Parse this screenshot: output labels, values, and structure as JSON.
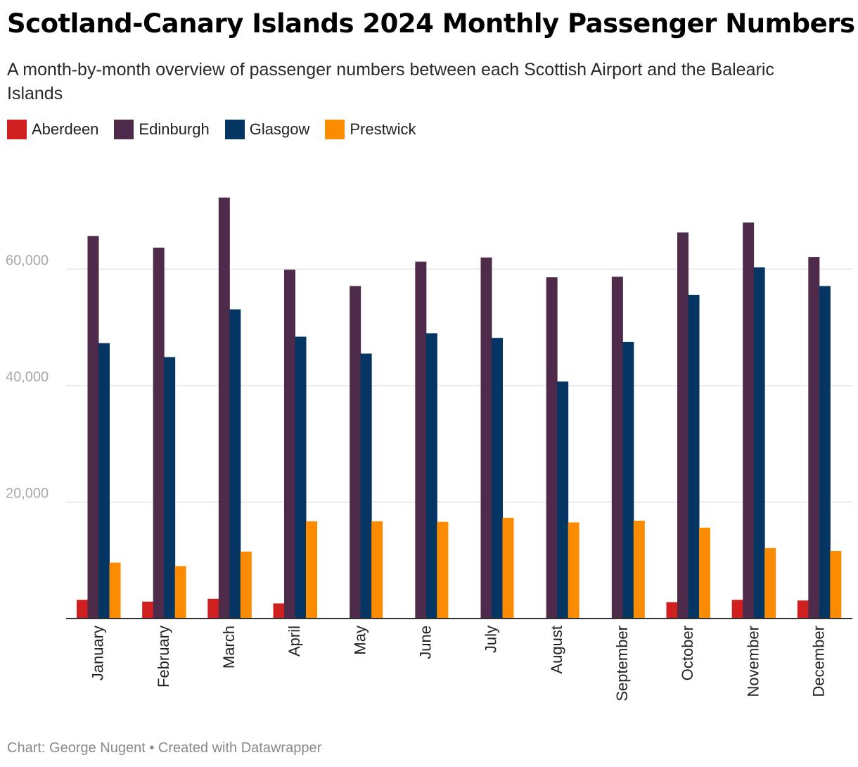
{
  "header": {
    "title": "Scotland-Canary Islands 2024 Monthly Passenger Numbers",
    "subtitle": "A month-by-month overview of passenger numbers between each Scottish Airport and the Balearic Islands"
  },
  "footer": {
    "credit": "Chart: George Nugent • Created with Datawrapper"
  },
  "colors": {
    "Aberdeen": "#d01f1f",
    "Edinburgh": "#4e2a4b",
    "Glasgow": "#043563",
    "Prestwick": "#fb8b00",
    "grid": "#e2e2e2",
    "axis": "#333333",
    "tick_text": "#a8a8a8"
  },
  "chart_data": {
    "type": "bar",
    "title": "Scotland-Canary Islands 2024 Monthly Passenger Numbers",
    "xlabel": "",
    "ylabel": "",
    "ylim": [
      0,
      72000
    ],
    "yticks": [
      20000,
      40000,
      60000
    ],
    "ytick_labels": [
      "20,000",
      "40,000",
      "60,000"
    ],
    "grid": true,
    "legend_position": "top-left",
    "categories": [
      "January",
      "February",
      "March",
      "April",
      "May",
      "June",
      "July",
      "August",
      "September",
      "October",
      "November",
      "December"
    ],
    "series": [
      {
        "name": "Aberdeen",
        "values": [
          3200,
          2900,
          3400,
          2600,
          null,
          null,
          null,
          null,
          null,
          2800,
          3200,
          3100
        ]
      },
      {
        "name": "Edinburgh",
        "values": [
          65700,
          63700,
          72300,
          59900,
          57100,
          61300,
          62000,
          58600,
          58700,
          66300,
          68000,
          62100
        ]
      },
      {
        "name": "Glasgow",
        "values": [
          47300,
          44900,
          53100,
          48400,
          45500,
          49000,
          48200,
          40700,
          47500,
          55600,
          60300,
          57100
        ]
      },
      {
        "name": "Prestwick",
        "values": [
          9600,
          9000,
          11500,
          16700,
          16700,
          16600,
          17300,
          16500,
          16800,
          15600,
          12100,
          11600
        ]
      }
    ]
  }
}
